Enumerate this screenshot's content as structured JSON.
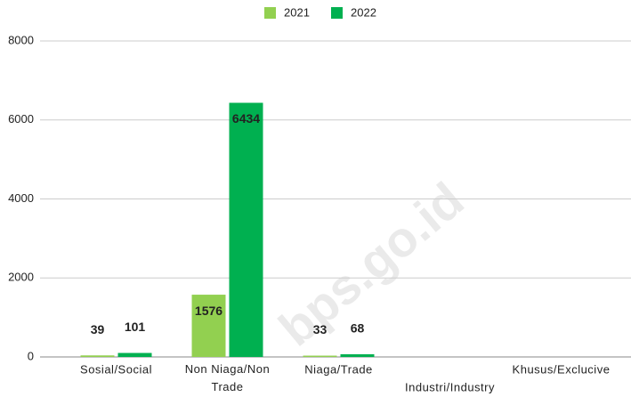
{
  "chart_data": {
    "type": "bar",
    "categories": [
      "Sosial/Social",
      "Non Niaga/Non Trade",
      "Niaga/Trade",
      "Industri/Industry",
      "Khusus/Exclucive"
    ],
    "series": [
      {
        "name": "2021",
        "color": "#92d050",
        "values": [
          39,
          1576,
          33,
          null,
          null
        ]
      },
      {
        "name": "2022",
        "color": "#00b050",
        "values": [
          101,
          6434,
          68,
          null,
          null
        ]
      }
    ],
    "ylim": [
      0,
      8000
    ],
    "yticks": [
      0,
      2000,
      4000,
      6000,
      8000
    ],
    "grid": true,
    "legend": "top",
    "watermark": "bps.go.id"
  }
}
